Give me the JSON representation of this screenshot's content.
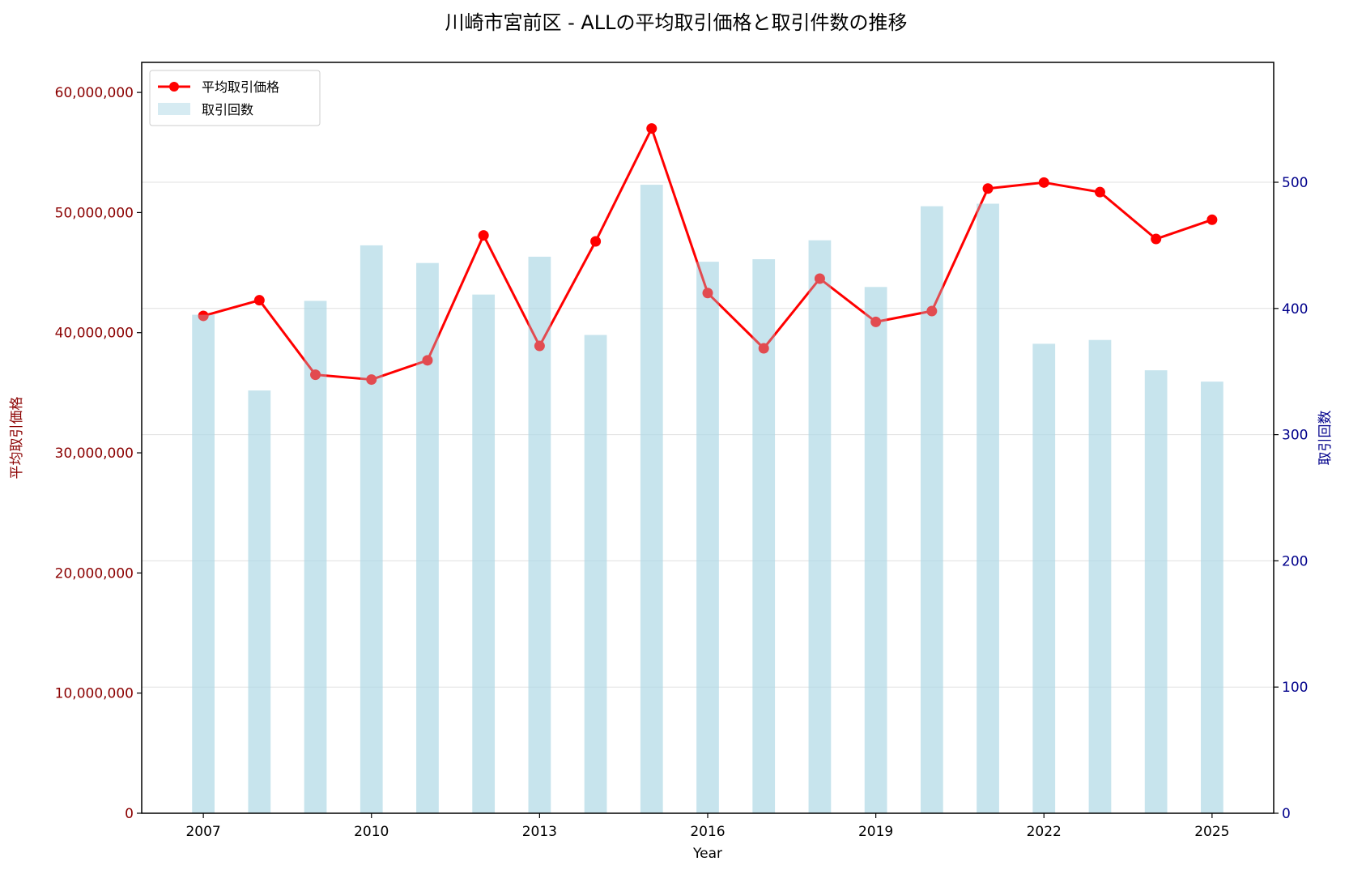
{
  "chart_data": {
    "type": "bar+line",
    "title": "川崎市宮前区 - ALLの平均取引価格と取引件数の推移",
    "xlabel": "Year",
    "ylabel_left": "平均取引価格",
    "ylabel_right": "取引回数",
    "x": [
      2007,
      2008,
      2009,
      2010,
      2011,
      2012,
      2013,
      2014,
      2015,
      2016,
      2017,
      2018,
      2019,
      2020,
      2021,
      2022,
      2023,
      2024,
      2025
    ],
    "x_ticks": [
      "2007",
      "2010",
      "2013",
      "2016",
      "2019",
      "2022",
      "2025"
    ],
    "xlim": [
      2005.9,
      2026.1
    ],
    "series": [
      {
        "name": "平均取引価格",
        "kind": "line",
        "axis": "left",
        "color": "#ff0000",
        "values": [
          41400000,
          42700000,
          36500000,
          36100000,
          37700000,
          48100000,
          38900000,
          47600000,
          57000000,
          43300000,
          38700000,
          44500000,
          40900000,
          41800000,
          52000000,
          52500000,
          51700000,
          47800000,
          49400000
        ]
      },
      {
        "name": "取引回数",
        "kind": "bar",
        "axis": "right",
        "color": "#add8e6",
        "values": [
          395,
          335,
          406,
          450,
          436,
          411,
          441,
          379,
          498,
          437,
          439,
          454,
          417,
          481,
          483,
          372,
          375,
          351,
          342
        ]
      }
    ],
    "ylim_left": [
      0,
      62500000
    ],
    "ylim_right": [
      0,
      595
    ],
    "yticks_left": [
      "0",
      "10,000,000",
      "20,000,000",
      "30,000,000",
      "40,000,000",
      "50,000,000",
      "60,000,000"
    ],
    "yticks_left_values": [
      0,
      10000000,
      20000000,
      30000000,
      40000000,
      50000000,
      60000000
    ],
    "yticks_right": [
      "0",
      "100",
      "200",
      "300",
      "400",
      "500"
    ],
    "yticks_right_values": [
      0,
      100,
      200,
      300,
      400,
      500
    ],
    "grid": "horizontal",
    "legend_position": "top-left",
    "colors": {
      "left_axis": "#8b0000",
      "right_axis": "#00008b",
      "line": "#ff0000",
      "bar": "#add8e6",
      "grid": "#e0e0e0"
    }
  }
}
